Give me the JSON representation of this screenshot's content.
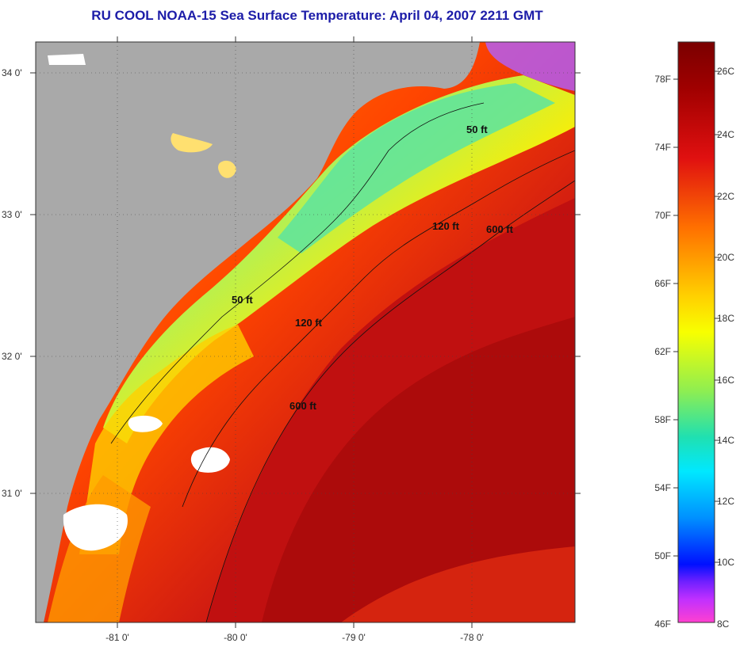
{
  "title": "RU COOL  NOAA-15  Sea Surface Temperature:  April 04, 2007 2211 GMT",
  "map": {
    "lat_ticks": [
      "34 0'",
      "33 0'",
      "32 0'",
      "31 0'"
    ],
    "lon_ticks": [
      "-81 0'",
      "-80 0'",
      "-79 0'",
      "-78 0'"
    ],
    "isobath_labels": [
      "50 ft",
      "50 ft",
      "120 ft",
      "120 ft",
      "600 ft",
      "600 ft"
    ],
    "colors": {
      "land": "#a9a9a9",
      "no_data": "#ffffff",
      "warm": "#c81414",
      "cool": "#36e0b0"
    }
  },
  "colorbar": {
    "fahrenheit": [
      "78F",
      "74F",
      "70F",
      "66F",
      "62F",
      "58F",
      "54F",
      "50F",
      "46F"
    ],
    "celsius": [
      "26C",
      "24C",
      "22C",
      "20C",
      "18C",
      "16C",
      "14C",
      "12C",
      "10C",
      "8C"
    ]
  }
}
